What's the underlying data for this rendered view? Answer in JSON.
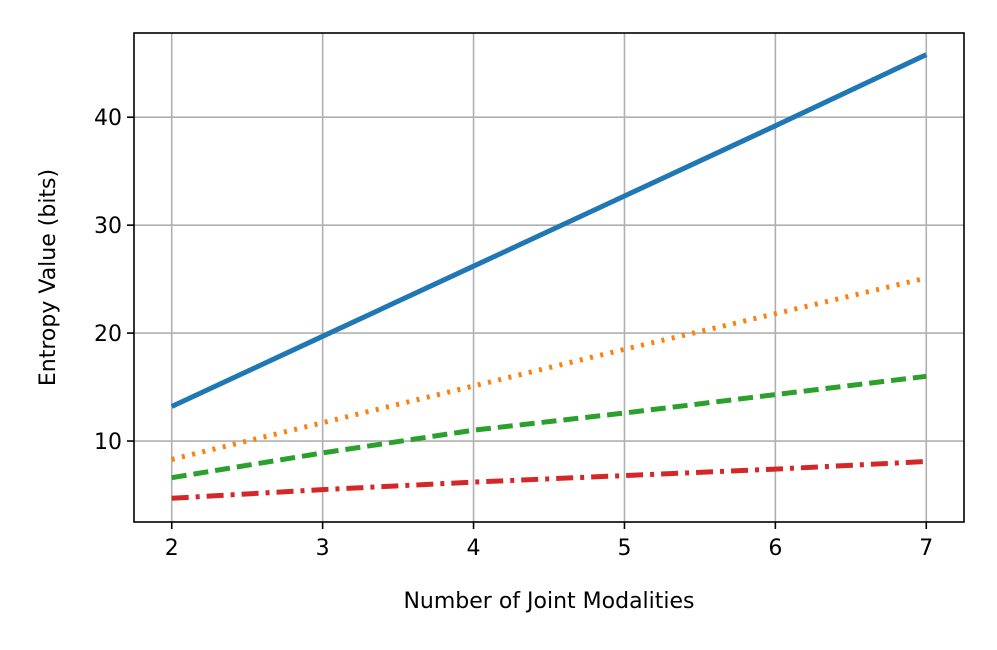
{
  "chart_data": {
    "type": "line",
    "xlabel": "Number of Joint Modalities",
    "ylabel": "Entropy Value (bits)",
    "xlim": [
      1.75,
      7.25
    ],
    "ylim": [
      2.5,
      47.8
    ],
    "x_ticks": [
      2,
      3,
      4,
      5,
      6,
      7
    ],
    "y_ticks": [
      10,
      20,
      30,
      40
    ],
    "grid": true,
    "x": [
      2,
      3,
      4,
      5,
      6,
      7
    ],
    "series": [
      {
        "values": [
          13.2,
          19.7,
          26.2,
          32.7,
          39.2,
          45.8
        ],
        "color": "#1f77b4",
        "style": "solid"
      },
      {
        "values": [
          8.3,
          11.7,
          15.1,
          18.5,
          21.8,
          25.1
        ],
        "color": "#ff7f0e",
        "style": "dotted"
      },
      {
        "values": [
          6.6,
          8.9,
          11.0,
          12.6,
          14.3,
          16.0
        ],
        "color": "#2ca02c",
        "style": "dashed"
      },
      {
        "values": [
          4.7,
          5.5,
          6.2,
          6.8,
          7.4,
          8.1
        ],
        "color": "#d62728",
        "style": "dashdot"
      }
    ]
  }
}
